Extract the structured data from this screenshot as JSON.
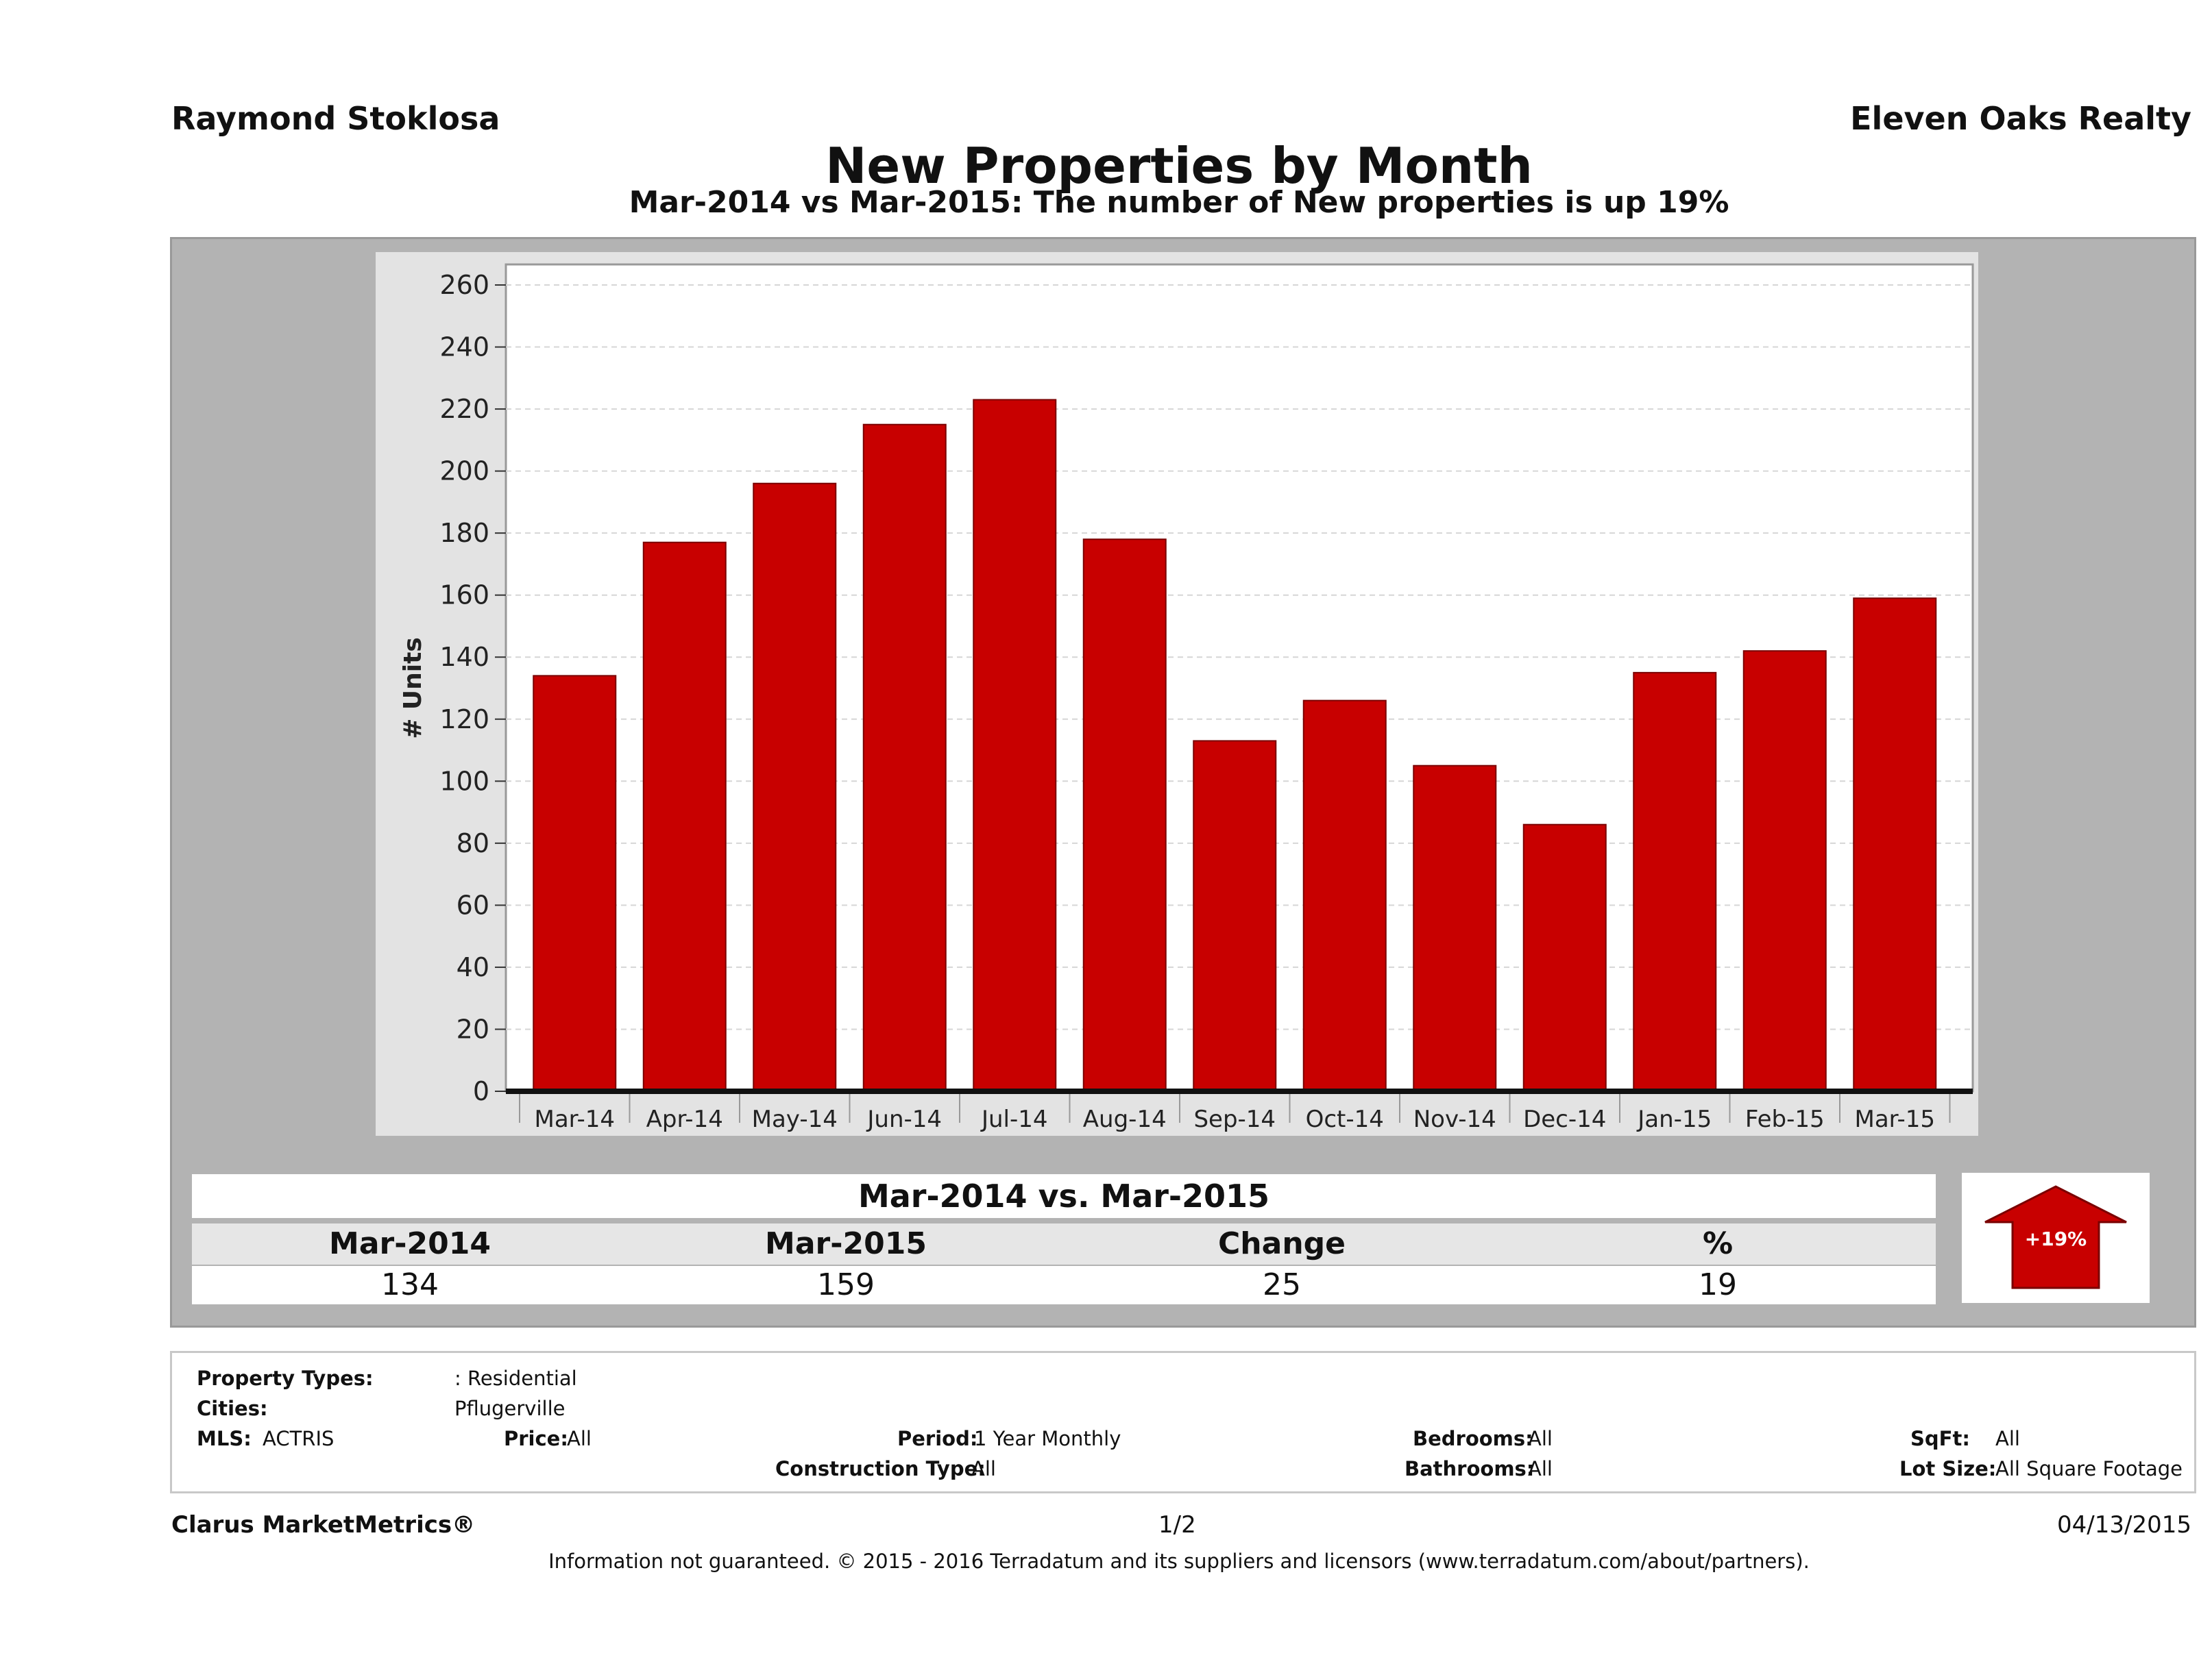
{
  "header": {
    "agent_name": "Raymond Stoklosa",
    "brokerage": "Eleven Oaks Realty",
    "title": "New Properties by Month",
    "subtitle": "Mar-2014 vs Mar-2015: The number of New  properties is up 19%"
  },
  "chart_data": {
    "type": "bar",
    "categories": [
      "Mar-14",
      "Apr-14",
      "May-14",
      "Jun-14",
      "Jul-14",
      "Aug-14",
      "Sep-14",
      "Oct-14",
      "Nov-14",
      "Dec-14",
      "Jan-15",
      "Feb-15",
      "Mar-15"
    ],
    "values": [
      134,
      177,
      196,
      215,
      223,
      178,
      113,
      126,
      105,
      86,
      135,
      142,
      159
    ],
    "ylabel": "# Units",
    "xlabel": "",
    "ylim": [
      0,
      260
    ],
    "yticks": [
      0,
      20,
      40,
      60,
      80,
      100,
      120,
      140,
      160,
      180,
      200,
      220,
      240,
      260
    ],
    "bar_color": "#c80000",
    "grid": true
  },
  "summary": {
    "heading": "Mar-2014 vs. Mar-2015",
    "columns": [
      "Mar-2014",
      "Mar-2015",
      "Change",
      "%"
    ],
    "values": [
      "134",
      "159",
      "25",
      "19"
    ],
    "badge": "+19%",
    "badge_color": "#c80000"
  },
  "filters": {
    "property_types_label": "Property Types:",
    "property_types_value": ": Residential",
    "cities_label": "Cities:",
    "cities_value": "Pflugerville",
    "mls_label": "MLS:",
    "mls_value": "ACTRIS",
    "price_label": "Price:",
    "price_value": "All",
    "period_label": "Period:",
    "period_value": "1 Year Monthly",
    "construction_label": "Construction Type:",
    "construction_value": "All",
    "bedrooms_label": "Bedrooms:",
    "bedrooms_value": "All",
    "bathrooms_label": "Bathrooms:",
    "bathrooms_value": "All",
    "sqft_label": "SqFt:",
    "sqft_value": "All",
    "lot_label": "Lot Size:",
    "lot_value": "All Square Footage"
  },
  "footer": {
    "brand": "Clarus MarketMetrics®",
    "page": "1/2",
    "date": "04/13/2015",
    "disclaimer": "Information not guaranteed. © 2015 - 2016 Terradatum and its suppliers and licensors (www.terradatum.com/about/partners)."
  }
}
